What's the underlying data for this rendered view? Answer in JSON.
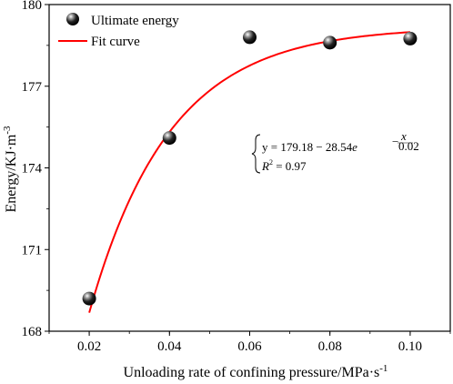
{
  "chart_data": {
    "type": "scatter",
    "title": "",
    "xlabel": "Unloading rate of confining pressure/MPa·s",
    "xlabel_sup": "-1",
    "ylabel": "Energy/KJ·m",
    "ylabel_sup": "-3",
    "xlim": [
      0.01,
      0.11
    ],
    "ylim": [
      168,
      180
    ],
    "xticks": [
      0.02,
      0.04,
      0.06,
      0.08,
      0.1
    ],
    "xtick_labels": [
      "0.02",
      "0.04",
      "0.06",
      "0.08",
      "0.10"
    ],
    "yticks": [
      168,
      171,
      174,
      177,
      180
    ],
    "ytick_labels": [
      "168",
      "171",
      "174",
      "177",
      "180"
    ],
    "grid": false,
    "legend_position": "top-left",
    "series": [
      {
        "name": "Ultimate energy",
        "type": "scatter",
        "x": [
          0.02,
          0.04,
          0.06,
          0.08,
          0.1
        ],
        "y": [
          169.2,
          175.1,
          178.8,
          178.6,
          178.75
        ]
      },
      {
        "name": "Fit curve",
        "type": "line",
        "color": "#ff0000",
        "formula": {
          "a": 179.18,
          "b": 28.54,
          "c": 0.02
        },
        "x_range": [
          0.02,
          0.1
        ]
      }
    ],
    "annotation": {
      "y_prefix": "y = 179.18 − 28.54",
      "e": "e",
      "exp_num": "x",
      "exp_den": "0.02",
      "exp_sign": "−",
      "r2_prefix": "R",
      "r2_sup": "2",
      "r2_suffix": " = 0.97"
    }
  }
}
